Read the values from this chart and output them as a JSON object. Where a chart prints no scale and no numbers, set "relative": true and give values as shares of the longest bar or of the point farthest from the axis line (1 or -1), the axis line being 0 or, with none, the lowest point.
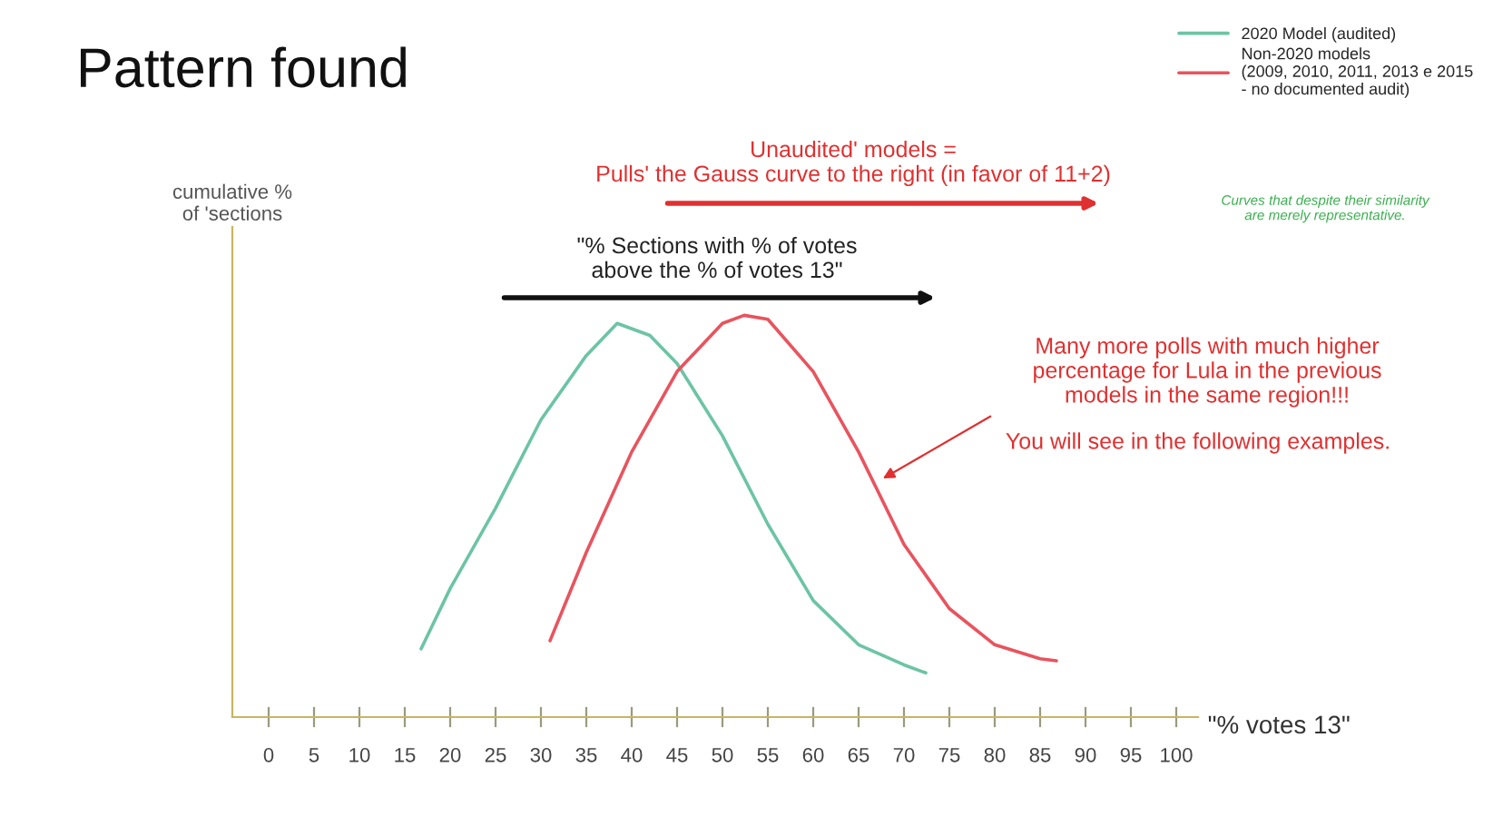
{
  "chart_data": {
    "type": "line",
    "title": "Pattern found",
    "xlabel": "\"% votes 13\"",
    "ylabel": "cumulative %\nof 'sections",
    "relative": true,
    "xlim": [
      -4,
      102.4
    ],
    "xticks": [
      0,
      5,
      10,
      15,
      20,
      25,
      30,
      35,
      40,
      45,
      50,
      55,
      60,
      65,
      70,
      75,
      80,
      85,
      90,
      95,
      100
    ],
    "series": [
      {
        "name": "2020 Model (audited)",
        "color": "#6cc4a4",
        "x": [
          16.8,
          20,
          25,
          30,
          35,
          38.4,
          42,
          45,
          50,
          55,
          60,
          65,
          70,
          72.4
        ],
        "values": [
          0.17,
          0.32,
          0.52,
          0.74,
          0.9,
          0.98,
          0.95,
          0.88,
          0.7,
          0.48,
          0.29,
          0.18,
          0.13,
          0.11
        ]
      },
      {
        "name": "Non-2020 models\n(2009, 2010, 2011, 2013 e 2015\n- no documented audit)",
        "color": "#e8545e",
        "x": [
          31,
          35,
          40,
          45,
          50,
          52.4,
          55,
          60,
          65,
          70,
          75,
          80,
          85,
          86.8
        ],
        "values": [
          0.19,
          0.41,
          0.66,
          0.86,
          0.98,
          1,
          0.99,
          0.86,
          0.66,
          0.43,
          0.27,
          0.18,
          0.145,
          0.14
        ]
      }
    ],
    "legend": "top right",
    "grid": false,
    "marker": "none",
    "line_style": "solid",
    "annotations": [
      "Unaudited' models =\nPulls' the Gauss curve to the right (in favor of 11+2)",
      "\"% Sections with % of votes\nabove the % of votes 13\"",
      "Many more polls with much higher\npercentage for Lula in the previous\nmodels in the same region!!!",
      "You will see in the following examples.",
      "Curves that despite their similarity\nare merely representative."
    ]
  }
}
